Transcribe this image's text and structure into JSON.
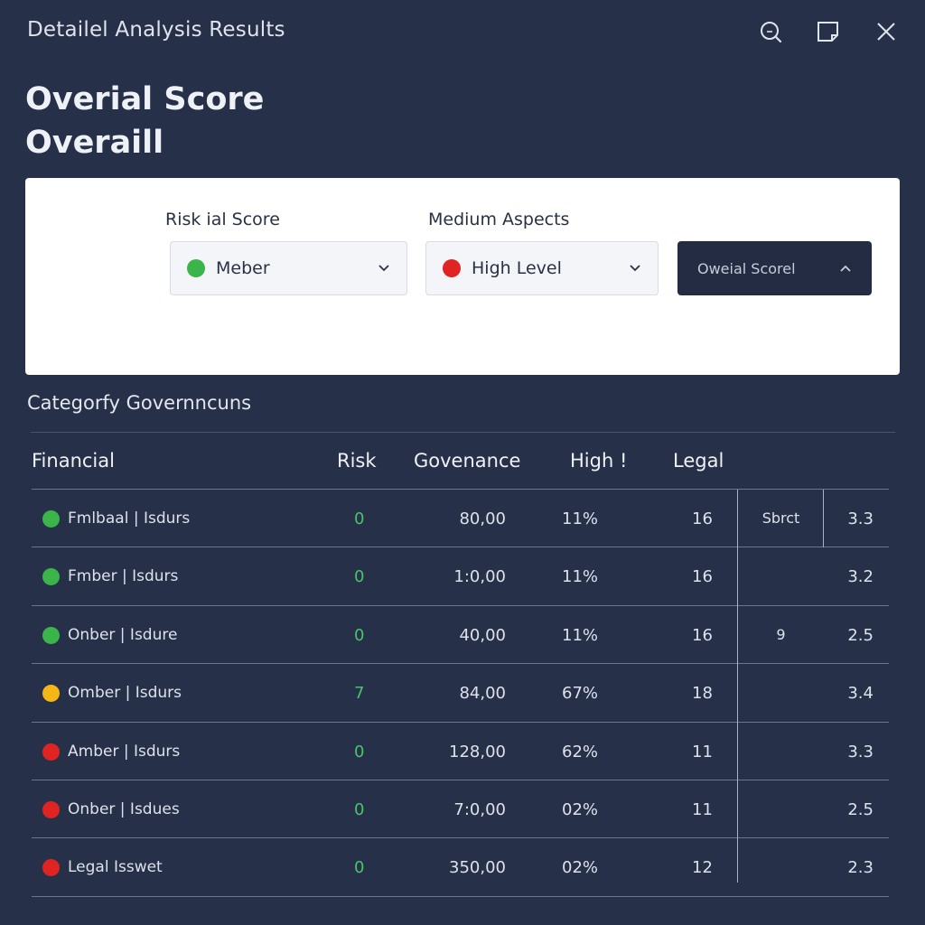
{
  "window": {
    "title": "Detailel Analysis Results",
    "controls": [
      {
        "name": "search-icon"
      },
      {
        "name": "maximize-icon"
      },
      {
        "name": "close-icon"
      }
    ]
  },
  "score": {
    "line1": "Overial Score",
    "line2": "Overaill"
  },
  "filters": {
    "risk_label": "Risk ial Score",
    "risk_value": "Meber",
    "risk_color": "#3bb54a",
    "aspects_label": "Medium Aspects",
    "aspects_value": "High Level",
    "aspects_color": "#e02424",
    "apply_label": "Oweial Scorel"
  },
  "section": {
    "title": "Categorfy Governncuns"
  },
  "table": {
    "headers": [
      "Financial",
      "Risk",
      "Govenance",
      "High !",
      "Legal"
    ],
    "rows": [
      {
        "name": "Fmlbaal | Isdurs",
        "color": "#3bb54a",
        "risk": "0",
        "gov": "80,00",
        "pct": "11%",
        "legal": "16",
        "extra": "Sbrct",
        "score": "3.3"
      },
      {
        "name": "Fmber | Isdurs",
        "color": "#3bb54a",
        "risk": "0",
        "gov": "1:0,00",
        "pct": "11%",
        "legal": "16",
        "extra": "",
        "score": "3.2"
      },
      {
        "name": "Onber | Isdure",
        "color": "#3bb54a",
        "risk": "0",
        "gov": "40,00",
        "pct": "11%",
        "legal": "16",
        "extra": "9",
        "score": "2.5"
      },
      {
        "name": "Omber | Isdurs",
        "color": "#f5b716",
        "risk": "7",
        "gov": "84,00",
        "pct": "67%",
        "legal": "18",
        "extra": "",
        "score": "3.4"
      },
      {
        "name": "Amber | Isdurs",
        "color": "#e02424",
        "risk": "0",
        "gov": "128,00",
        "pct": "62%",
        "legal": "11",
        "extra": "",
        "score": "3.3"
      },
      {
        "name": "Onber | Isdues",
        "color": "#e02424",
        "risk": "0",
        "gov": "7:0,00",
        "pct": "02%",
        "legal": "11",
        "extra": "",
        "score": "2.5"
      },
      {
        "name": "Legal Isswet",
        "color": "#e02424",
        "risk": "0",
        "gov": "350,00",
        "pct": "02%",
        "legal": "12",
        "extra": "",
        "score": "2.3"
      }
    ]
  }
}
